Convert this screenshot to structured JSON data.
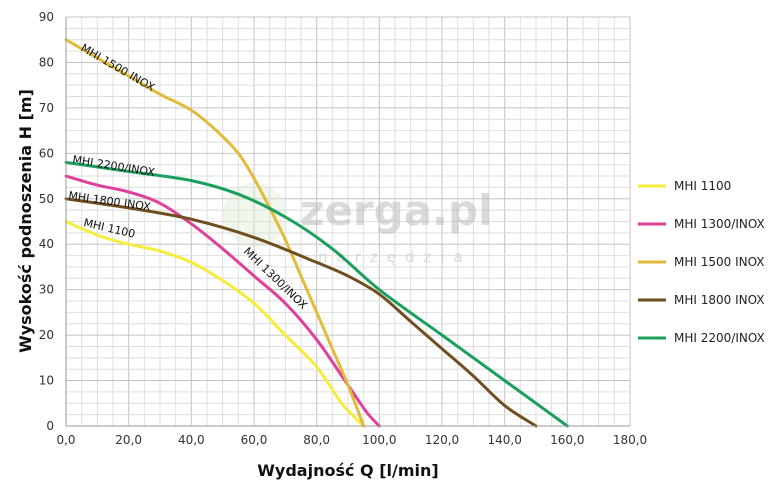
{
  "chart_data": {
    "type": "line",
    "xlabel": "Wydajność Q [l/min]",
    "ylabel": "Wysokość podnoszenia H [m]",
    "xlim": [
      0,
      180
    ],
    "ylim": [
      0,
      90
    ],
    "x_ticks": [
      "0,0",
      "20,0",
      "40,0",
      "60,0",
      "80,0",
      "100,0",
      "120,0",
      "140,0",
      "160,0",
      "180,0"
    ],
    "y_ticks": [
      "0",
      "10",
      "20",
      "30",
      "40",
      "50",
      "60",
      "70",
      "80",
      "90"
    ],
    "grid": true,
    "legend_position": "right",
    "series": [
      {
        "name": "MHI 1100",
        "color": "#f5ec3c",
        "label": "MHI 1100",
        "points": [
          [
            0,
            45
          ],
          [
            10,
            42
          ],
          [
            20,
            40
          ],
          [
            30,
            38.5
          ],
          [
            40,
            36
          ],
          [
            50,
            32
          ],
          [
            60,
            27
          ],
          [
            70,
            20
          ],
          [
            80,
            13
          ],
          [
            88,
            5
          ],
          [
            95,
            0
          ]
        ]
      },
      {
        "name": "MHI 1300/INOX",
        "color": "#e0409a",
        "label": "MHI 1300/INOX",
        "points": [
          [
            0,
            55
          ],
          [
            10,
            53
          ],
          [
            20,
            51.5
          ],
          [
            30,
            49
          ],
          [
            40,
            44.5
          ],
          [
            50,
            39
          ],
          [
            60,
            33
          ],
          [
            70,
            27
          ],
          [
            80,
            19
          ],
          [
            90,
            9
          ],
          [
            96,
            3
          ],
          [
            100,
            0
          ]
        ]
      },
      {
        "name": "MHI 1500 INOX",
        "color": "#e2bb3a",
        "label": "MHI 1500 INOX",
        "points": [
          [
            0,
            85
          ],
          [
            10,
            81
          ],
          [
            20,
            77
          ],
          [
            30,
            73
          ],
          [
            40,
            69.5
          ],
          [
            48,
            65
          ],
          [
            55,
            60
          ],
          [
            60,
            54.5
          ],
          [
            65,
            48
          ],
          [
            70,
            41
          ],
          [
            75,
            33
          ],
          [
            80,
            25
          ],
          [
            85,
            17
          ],
          [
            90,
            9
          ],
          [
            95,
            0
          ]
        ]
      },
      {
        "name": "MHI 1800 INOX",
        "color": "#6f4e1f",
        "label": "MHI 1800 INOX",
        "points": [
          [
            0,
            50
          ],
          [
            20,
            48
          ],
          [
            40,
            45.5
          ],
          [
            60,
            41.5
          ],
          [
            80,
            36
          ],
          [
            90,
            33
          ],
          [
            100,
            29
          ],
          [
            110,
            23
          ],
          [
            120,
            17
          ],
          [
            130,
            11
          ],
          [
            140,
            4.5
          ],
          [
            150,
            0
          ]
        ]
      },
      {
        "name": "MHI 2200/INOX",
        "color": "#1aa05c",
        "label": "MHI 2200/INOX",
        "points": [
          [
            0,
            58
          ],
          [
            20,
            56
          ],
          [
            40,
            54
          ],
          [
            55,
            51
          ],
          [
            70,
            46
          ],
          [
            85,
            39
          ],
          [
            100,
            30
          ],
          [
            120,
            20
          ],
          [
            140,
            10
          ],
          [
            160,
            0
          ]
        ]
      }
    ]
  },
  "curve_labels": [
    "MHI 1500 INOX",
    "MHI 2200/INOX",
    "MHI 1800 INOX",
    "MHI 1100",
    "MHI 1300/INOX"
  ],
  "legend": [
    "MHI 1100",
    "MHI 1300/INOX",
    "MHI 1500 INOX",
    "MHI 1800 INOX",
    "MHI 2200/INOX"
  ],
  "watermark": {
    "logo": "zerga.pl",
    "sub": "narzędzia"
  }
}
